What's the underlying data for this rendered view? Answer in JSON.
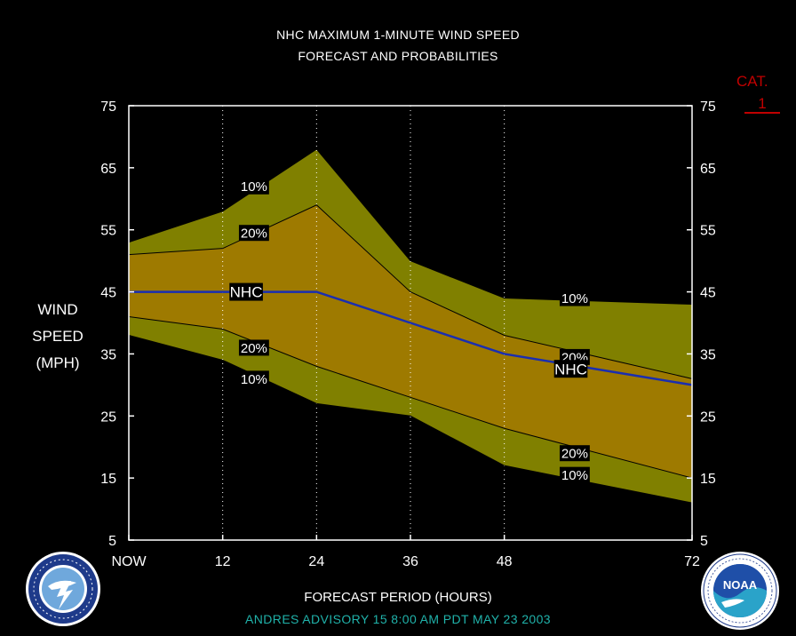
{
  "header": {
    "title_line1": "NHC MAXIMUM 1-MINUTE WIND SPEED",
    "title_line2": "FORECAST AND PROBABILITIES"
  },
  "category": {
    "label": "CAT.",
    "value": "1"
  },
  "ylabel_lines": [
    "WIND",
    "SPEED",
    "(MPH)"
  ],
  "xlabel": "FORECAST PERIOD (HOURS)",
  "advisory": "ANDRES   ADVISORY  15  8:00  AM  PDT  MAY  23  2003",
  "logos": {
    "left": "nws-logo",
    "right": "noaa-logo"
  },
  "colors": {
    "outer_band": "#808000",
    "inner_band": "#9e7a00",
    "nhc_line": "#1a2eb0",
    "band_edge": "#000000",
    "grid": "#ffffff",
    "advisory_text": "#20b2aa",
    "category_text": "#c00000"
  },
  "chart_data": {
    "type": "area",
    "xlabel": "FORECAST PERIOD (HOURS)",
    "ylabel": "WIND SPEED (MPH)",
    "xlim": [
      0,
      72
    ],
    "ylim": [
      5,
      75
    ],
    "x_ticks": [
      0,
      12,
      24,
      36,
      48,
      72
    ],
    "x_tick_labels": [
      "NOW",
      "12",
      "24",
      "36",
      "48",
      "72"
    ],
    "y_ticks": [
      5,
      15,
      25,
      35,
      45,
      55,
      65,
      75
    ],
    "grid": "vertical dotted",
    "x": [
      0,
      12,
      24,
      36,
      48,
      72
    ],
    "series": [
      {
        "name": "10%",
        "values": [
          53,
          58,
          68,
          50,
          44,
          43
        ]
      },
      {
        "name": "20%",
        "values": [
          51,
          52,
          59,
          45,
          38,
          31
        ]
      },
      {
        "name": "NHC",
        "values": [
          45,
          45,
          45,
          40,
          35,
          30
        ]
      },
      {
        "name": "20%",
        "values": [
          41,
          39,
          33,
          28,
          23,
          15
        ]
      },
      {
        "name": "10%",
        "values": [
          38,
          34,
          27,
          25,
          17,
          11
        ]
      }
    ],
    "annotations": [
      {
        "text": "10%",
        "x": 16,
        "y": 62
      },
      {
        "text": "20%",
        "x": 16,
        "y": 54.5
      },
      {
        "text": "NHC",
        "x": 15,
        "y": 45
      },
      {
        "text": "20%",
        "x": 16,
        "y": 36
      },
      {
        "text": "10%",
        "x": 16,
        "y": 31
      },
      {
        "text": "10%",
        "x": 57,
        "y": 44
      },
      {
        "text": "20%",
        "x": 57,
        "y": 34.5
      },
      {
        "text": "NHC",
        "x": 56.5,
        "y": 32.6
      },
      {
        "text": "20%",
        "x": 57,
        "y": 19
      },
      {
        "text": "10%",
        "x": 57,
        "y": 15.5
      }
    ]
  }
}
